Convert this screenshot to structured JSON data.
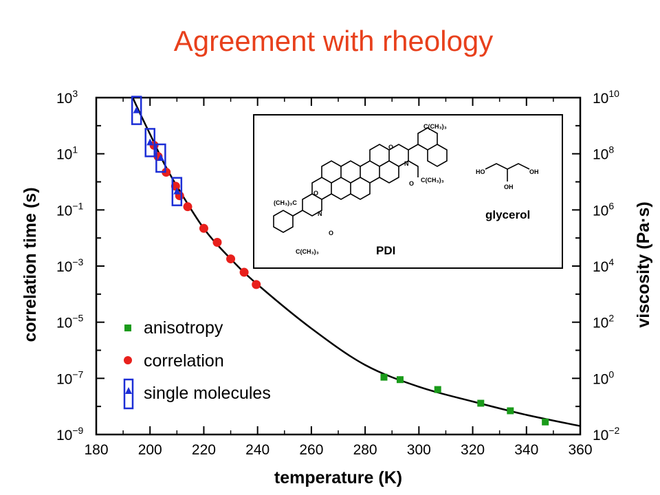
{
  "title": "Agreement with rheology",
  "chart_data": {
    "type": "scatter",
    "xlabel": "temperature (K)",
    "ylabel": "correlation time (s)",
    "y2label": "viscosity (Pa·s)",
    "xlim": [
      180,
      360
    ],
    "xticks": [
      "180",
      "200",
      "220",
      "240",
      "260",
      "280",
      "300",
      "320",
      "340",
      "360"
    ],
    "yscale": "log",
    "ylim_exp": [
      -9,
      3
    ],
    "yticks": [
      {
        "base": "10",
        "exp": "3"
      },
      {
        "base": "10",
        "exp": "1"
      },
      {
        "base": "10",
        "exp": "−1"
      },
      {
        "base": "10",
        "exp": "−3"
      },
      {
        "base": "10",
        "exp": "−5"
      },
      {
        "base": "10",
        "exp": "−7"
      },
      {
        "base": "10",
        "exp": "−9"
      }
    ],
    "y2scale": "log",
    "y2lim_exp": [
      -2,
      10
    ],
    "y2ticks": [
      {
        "base": "10",
        "exp": "10"
      },
      {
        "base": "10",
        "exp": "8"
      },
      {
        "base": "10",
        "exp": "6"
      },
      {
        "base": "10",
        "exp": "4"
      },
      {
        "base": "10",
        "exp": "2"
      },
      {
        "base": "10",
        "exp": "0"
      },
      {
        "base": "10",
        "exp": "−2"
      }
    ],
    "series": [
      {
        "name": "anisotropy",
        "marker": "square",
        "color": "#1a9b1a",
        "points": [
          [
            287,
            1.1e-07
          ],
          [
            293,
            9e-08
          ],
          [
            307,
            4e-08
          ],
          [
            323,
            1.3e-08
          ],
          [
            334,
            7e-09
          ],
          [
            347,
            2.8e-09
          ]
        ]
      },
      {
        "name": "correlation",
        "marker": "circle",
        "color": "#e8201c",
        "points": [
          [
            201.5,
            20
          ],
          [
            203,
            8
          ],
          [
            206,
            2.2
          ],
          [
            209.5,
            0.7
          ],
          [
            211,
            0.32
          ],
          [
            214,
            0.13
          ],
          [
            220,
            0.022
          ],
          [
            225,
            0.007
          ],
          [
            230,
            0.0018
          ],
          [
            235,
            0.0006
          ],
          [
            239.5,
            0.00022
          ]
        ]
      },
      {
        "name": "single molecules",
        "marker": "triangle-box",
        "color": "#1c2ed6",
        "points": [
          [
            195,
            350
          ],
          [
            200,
            25
          ],
          [
            204,
            7
          ],
          [
            210,
            0.45
          ]
        ]
      }
    ],
    "fit_curve": {
      "color": "#000000",
      "points": [
        [
          190,
          6000
        ],
        [
          195,
          500
        ],
        [
          200,
          50
        ],
        [
          205,
          5
        ],
        [
          210,
          0.7
        ],
        [
          220,
          0.022
        ],
        [
          230,
          0.0018
        ],
        [
          240,
          0.00022
        ],
        [
          260,
          6e-06
        ],
        [
          280,
          3e-07
        ],
        [
          300,
          5e-08
        ],
        [
          320,
          1.5e-08
        ],
        [
          340,
          5e-09
        ],
        [
          360,
          2e-09
        ]
      ]
    },
    "legend_position": "lower-left",
    "grid": false
  },
  "inset": {
    "pdi_label": "PDI",
    "glycerol_label": "glycerol",
    "labels": {
      "tbu_top": "C(CH₃)₃",
      "tbu_right": "C(CH₃)₃",
      "tbu_left": "(CH₃)₃C",
      "tbu_bottom": "C(CH₃)₃",
      "oxygen": "O",
      "nitrogen": "N",
      "hydroxyl": "OH",
      "hydroxyl_left": "HO"
    }
  }
}
